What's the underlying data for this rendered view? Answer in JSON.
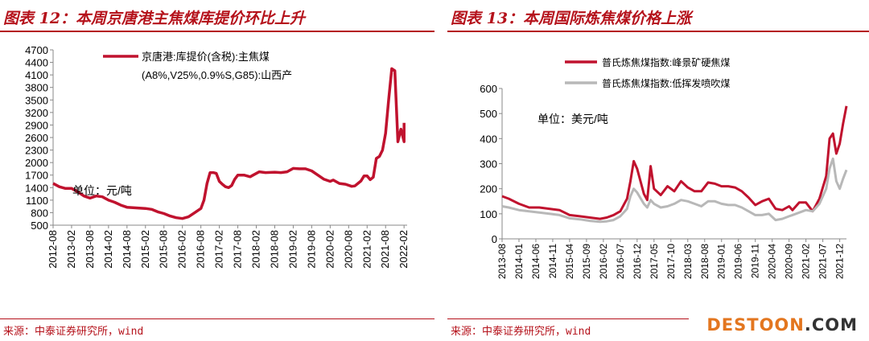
{
  "left": {
    "title": "图表 12：本周京唐港主焦煤库提价环比上升",
    "source": "来源：中泰证券研究所，wind",
    "chart_data": {
      "type": "line",
      "unit_label": "单位：元/吨",
      "ylim": [
        500,
        4700
      ],
      "y_ticks": [
        500,
        800,
        1100,
        1400,
        1700,
        2000,
        2300,
        2600,
        2900,
        3200,
        3500,
        3800,
        4100,
        4400,
        4700
      ],
      "x_ticks": [
        "2012-08",
        "2013-02",
        "2013-08",
        "2014-02",
        "2014-08",
        "2015-02",
        "2015-08",
        "2016-02",
        "2016-08",
        "2017-02",
        "2017-08",
        "2018-02",
        "2018-08",
        "2019-02",
        "2019-08",
        "2020-02",
        "2020-08",
        "2021-02",
        "2021-08",
        "2022-02"
      ],
      "legend_line1": "京唐港:库提价(含税):主焦煤",
      "legend_line2": "(A8%,V25%,0.9%S,G85):山西产",
      "series": [
        {
          "name": "京唐港:库提价(含税):主焦煤(A8%,V25%,0.9%S,G85):山西产",
          "color": "#c0122e",
          "points": [
            [
              "2012-08",
              1500
            ],
            [
              "2012-10",
              1420
            ],
            [
              "2012-12",
              1380
            ],
            [
              "2013-02",
              1380
            ],
            [
              "2013-04",
              1300
            ],
            [
              "2013-06",
              1200
            ],
            [
              "2013-08",
              1150
            ],
            [
              "2013-10",
              1200
            ],
            [
              "2013-12",
              1180
            ],
            [
              "2014-02",
              1100
            ],
            [
              "2014-04",
              1050
            ],
            [
              "2014-06",
              980
            ],
            [
              "2014-08",
              930
            ],
            [
              "2014-10",
              920
            ],
            [
              "2014-12",
              910
            ],
            [
              "2015-02",
              900
            ],
            [
              "2015-04",
              880
            ],
            [
              "2015-06",
              820
            ],
            [
              "2015-08",
              780
            ],
            [
              "2015-10",
              720
            ],
            [
              "2015-12",
              680
            ],
            [
              "2016-02",
              660
            ],
            [
              "2016-04",
              700
            ],
            [
              "2016-06",
              800
            ],
            [
              "2016-08",
              900
            ],
            [
              "2016-09",
              1100
            ],
            [
              "2016-10",
              1500
            ],
            [
              "2016-11",
              1760
            ],
            [
              "2016-12",
              1760
            ],
            [
              "2017-01",
              1740
            ],
            [
              "2017-02",
              1550
            ],
            [
              "2017-03",
              1480
            ],
            [
              "2017-04",
              1420
            ],
            [
              "2017-05",
              1400
            ],
            [
              "2017-06",
              1450
            ],
            [
              "2017-07",
              1600
            ],
            [
              "2017-08",
              1700
            ],
            [
              "2017-10",
              1700
            ],
            [
              "2017-12",
              1660
            ],
            [
              "2018-01",
              1700
            ],
            [
              "2018-03",
              1780
            ],
            [
              "2018-05",
              1760
            ],
            [
              "2018-08",
              1770
            ],
            [
              "2018-10",
              1760
            ],
            [
              "2018-12",
              1780
            ],
            [
              "2019-02",
              1860
            ],
            [
              "2019-04",
              1850
            ],
            [
              "2019-06",
              1850
            ],
            [
              "2019-08",
              1800
            ],
            [
              "2019-10",
              1700
            ],
            [
              "2019-12",
              1600
            ],
            [
              "2020-02",
              1550
            ],
            [
              "2020-03",
              1580
            ],
            [
              "2020-05",
              1500
            ],
            [
              "2020-07",
              1480
            ],
            [
              "2020-09",
              1430
            ],
            [
              "2020-10",
              1440
            ],
            [
              "2020-11",
              1500
            ],
            [
              "2020-12",
              1560
            ],
            [
              "2021-01",
              1680
            ],
            [
              "2021-02",
              1680
            ],
            [
              "2021-03",
              1590
            ],
            [
              "2021-04",
              1650
            ],
            [
              "2021-05",
              2100
            ],
            [
              "2021-06",
              2150
            ],
            [
              "2021-07",
              2300
            ],
            [
              "2021-08",
              2700
            ],
            [
              "2021-09",
              3500
            ],
            [
              "2021-10",
              4250
            ],
            [
              "2021-11",
              4200
            ],
            [
              "2021-12",
              2500
            ],
            [
              "2022-01",
              2800
            ],
            [
              "2022-02",
              2500
            ],
            [
              "2022-02",
              2950
            ]
          ]
        }
      ]
    }
  },
  "right": {
    "title": "图表 13：本周国际炼焦煤价格上涨",
    "source": "来源：中泰证券研究所，wind",
    "chart_data": {
      "type": "line",
      "unit_label": "单位：美元/吨",
      "ylim": [
        0,
        600
      ],
      "y_ticks": [
        0,
        100,
        200,
        300,
        400,
        500,
        600
      ],
      "x_ticks": [
        "2013-08",
        "2014-01",
        "2014-06",
        "2014-11",
        "2015-04",
        "2015-09",
        "2016-02",
        "2016-07",
        "2016-12",
        "2017-05",
        "2017-10",
        "2018-03",
        "2018-08",
        "2019-01",
        "2019-06",
        "2019-11",
        "2020-04",
        "2020-09",
        "2021-02",
        "2021-07",
        "2021-12"
      ],
      "series": [
        {
          "name": "普氏炼焦煤指数:峰景矿硬焦煤",
          "color": "#c0122e",
          "points": [
            [
              "2013-08",
              170
            ],
            [
              "2013-10",
              160
            ],
            [
              "2014-01",
              140
            ],
            [
              "2014-04",
              125
            ],
            [
              "2014-07",
              125
            ],
            [
              "2014-10",
              120
            ],
            [
              "2015-01",
              115
            ],
            [
              "2015-04",
              95
            ],
            [
              "2015-07",
              90
            ],
            [
              "2015-10",
              85
            ],
            [
              "2016-01",
              80
            ],
            [
              "2016-03",
              85
            ],
            [
              "2016-05",
              95
            ],
            [
              "2016-07",
              110
            ],
            [
              "2016-09",
              160
            ],
            [
              "2016-10",
              230
            ],
            [
              "2016-11",
              310
            ],
            [
              "2016-12",
              280
            ],
            [
              "2017-02",
              180
            ],
            [
              "2017-03",
              155
            ],
            [
              "2017-04",
              290
            ],
            [
              "2017-05",
              200
            ],
            [
              "2017-07",
              175
            ],
            [
              "2017-09",
              210
            ],
            [
              "2017-11",
              190
            ],
            [
              "2018-01",
              230
            ],
            [
              "2018-03",
              205
            ],
            [
              "2018-05",
              190
            ],
            [
              "2018-07",
              190
            ],
            [
              "2018-09",
              225
            ],
            [
              "2018-11",
              220
            ],
            [
              "2019-01",
              210
            ],
            [
              "2019-03",
              210
            ],
            [
              "2019-05",
              205
            ],
            [
              "2019-07",
              190
            ],
            [
              "2019-09",
              165
            ],
            [
              "2019-11",
              135
            ],
            [
              "2020-01",
              150
            ],
            [
              "2020-03",
              160
            ],
            [
              "2020-05",
              120
            ],
            [
              "2020-07",
              115
            ],
            [
              "2020-09",
              130
            ],
            [
              "2020-10",
              115
            ],
            [
              "2020-12",
              145
            ],
            [
              "2021-02",
              145
            ],
            [
              "2021-04",
              110
            ],
            [
              "2021-06",
              160
            ],
            [
              "2021-08",
              250
            ],
            [
              "2021-09",
              400
            ],
            [
              "2021-10",
              420
            ],
            [
              "2021-11",
              340
            ],
            [
              "2021-12",
              380
            ],
            [
              "2022-01",
              460
            ],
            [
              "2022-02",
              530
            ]
          ]
        },
        {
          "name": "普氏炼焦煤指数:低挥发喷吹煤",
          "color": "#b8b8b8",
          "points": [
            [
              "2013-08",
              130
            ],
            [
              "2013-10",
              125
            ],
            [
              "2014-01",
              115
            ],
            [
              "2014-04",
              110
            ],
            [
              "2014-07",
              105
            ],
            [
              "2014-10",
              100
            ],
            [
              "2015-01",
              95
            ],
            [
              "2015-04",
              82
            ],
            [
              "2015-07",
              78
            ],
            [
              "2015-10",
              72
            ],
            [
              "2016-01",
              68
            ],
            [
              "2016-03",
              70
            ],
            [
              "2016-05",
              75
            ],
            [
              "2016-07",
              90
            ],
            [
              "2016-09",
              120
            ],
            [
              "2016-10",
              170
            ],
            [
              "2016-11",
              200
            ],
            [
              "2016-12",
              185
            ],
            [
              "2017-02",
              140
            ],
            [
              "2017-03",
              125
            ],
            [
              "2017-04",
              155
            ],
            [
              "2017-05",
              140
            ],
            [
              "2017-07",
              125
            ],
            [
              "2017-09",
              130
            ],
            [
              "2017-11",
              140
            ],
            [
              "2018-01",
              155
            ],
            [
              "2018-03",
              150
            ],
            [
              "2018-05",
              140
            ],
            [
              "2018-07",
              130
            ],
            [
              "2018-09",
              150
            ],
            [
              "2018-11",
              150
            ],
            [
              "2019-01",
              140
            ],
            [
              "2019-03",
              135
            ],
            [
              "2019-05",
              135
            ],
            [
              "2019-07",
              125
            ],
            [
              "2019-09",
              110
            ],
            [
              "2019-11",
              95
            ],
            [
              "2020-01",
              95
            ],
            [
              "2020-03",
              100
            ],
            [
              "2020-05",
              75
            ],
            [
              "2020-07",
              80
            ],
            [
              "2020-09",
              90
            ],
            [
              "2020-10",
              95
            ],
            [
              "2020-12",
              105
            ],
            [
              "2021-02",
              115
            ],
            [
              "2021-04",
              110
            ],
            [
              "2021-06",
              140
            ],
            [
              "2021-08",
              200
            ],
            [
              "2021-09",
              280
            ],
            [
              "2021-10",
              320
            ],
            [
              "2021-11",
              230
            ],
            [
              "2021-12",
              200
            ],
            [
              "2022-01",
              240
            ],
            [
              "2022-02",
              275
            ]
          ]
        }
      ]
    }
  },
  "watermark": {
    "brand": "DESTOON",
    "tld": ".COM",
    "brand_color": "#e3761f",
    "tld_color": "#333333"
  }
}
